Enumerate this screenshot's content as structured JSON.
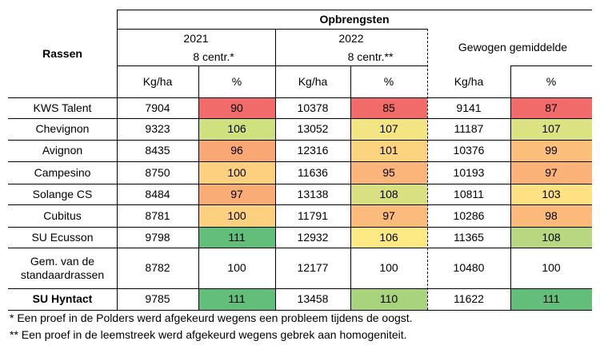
{
  "table": {
    "header": {
      "rassen": "Rassen",
      "opbrengsten": "Opbrengsten",
      "y2021": "2021",
      "y2021_centr": "8  centr.*",
      "y2022": "2022",
      "y2022_centr": "8  centr.**",
      "gewogen": "Gewogen gemiddelde",
      "kgha": "Kg/ha",
      "pct": "%"
    },
    "rows": [
      {
        "name": "KWS Talent",
        "bold": false,
        "y2021_kg": "7904",
        "y2021_pct": "90",
        "y2022_kg": "10378",
        "y2022_pct": "85",
        "avg_kg": "9141",
        "avg_pct": "87",
        "c2021": "#f26b6b",
        "c2022": "#f26b6b",
        "cavg": "#f26b6b"
      },
      {
        "name": "Chevignon",
        "bold": false,
        "y2021_kg": "9323",
        "y2021_pct": "106",
        "y2022_kg": "13052",
        "y2022_pct": "107",
        "avg_kg": "11187",
        "avg_pct": "107",
        "c2021": "#cfe17f",
        "c2022": "#f3e583",
        "cavg": "#dbe282"
      },
      {
        "name": "Avignon",
        "bold": false,
        "y2021_kg": "8435",
        "y2021_pct": "96",
        "y2022_kg": "12316",
        "y2022_pct": "101",
        "avg_kg": "10376",
        "avg_pct": "99",
        "c2021": "#f9a875",
        "c2022": "#fcd47f",
        "cavg": "#fbbf7b"
      },
      {
        "name": "Campesino",
        "bold": false,
        "y2021_kg": "8750",
        "y2021_pct": "100",
        "y2022_kg": "11636",
        "y2022_pct": "95",
        "avg_kg": "10193",
        "avg_pct": "97",
        "c2021": "#fcd07f",
        "c2022": "#fbb479",
        "cavg": "#fab278"
      },
      {
        "name": "Solange CS",
        "bold": false,
        "y2021_kg": "8484",
        "y2021_pct": "97",
        "y2022_kg": "13138",
        "y2022_pct": "108",
        "avg_kg": "10811",
        "avg_pct": "103",
        "c2021": "#f9ac76",
        "c2022": "#d9e081",
        "cavg": "#fde183"
      },
      {
        "name": "Cubitus",
        "bold": false,
        "y2021_kg": "8781",
        "y2021_pct": "100",
        "y2022_kg": "11791",
        "y2022_pct": "97",
        "avg_kg": "10286",
        "avg_pct": "98",
        "c2021": "#fcd07f",
        "c2022": "#fbbb7b",
        "cavg": "#fbb97a"
      },
      {
        "name": "SU Ecusson",
        "bold": false,
        "y2021_kg": "9798",
        "y2021_pct": "111",
        "y2022_kg": "12932",
        "y2022_pct": "106",
        "avg_kg": "11365",
        "avg_pct": "108",
        "c2021": "#63be7b",
        "c2022": "#feea84",
        "cavg": "#b9d780"
      },
      {
        "name": "Gem. van de standaardrassen",
        "bold": false,
        "y2021_kg": "8782",
        "y2021_pct": "100",
        "y2022_kg": "12177",
        "y2022_pct": "100",
        "avg_kg": "10480",
        "avg_pct": "100",
        "c2021": "#ffffff",
        "c2022": "#ffffff",
        "cavg": "#ffffff"
      },
      {
        "name": "SU Hyntact",
        "bold": true,
        "y2021_kg": "9785",
        "y2021_pct": "111",
        "y2022_kg": "13458",
        "y2022_pct": "110",
        "avg_kg": "11622",
        "avg_pct": "111",
        "c2021": "#63be7b",
        "c2022": "#aad37e",
        "cavg": "#63be7b"
      }
    ]
  },
  "notes": [
    "* Een proef in de Polders werd afgekeurd wegens een probleem tijdens de oogst.",
    "**  Een proef in de leemstreek werd afgekeurd wegens gebrek aan homogeniteit."
  ]
}
